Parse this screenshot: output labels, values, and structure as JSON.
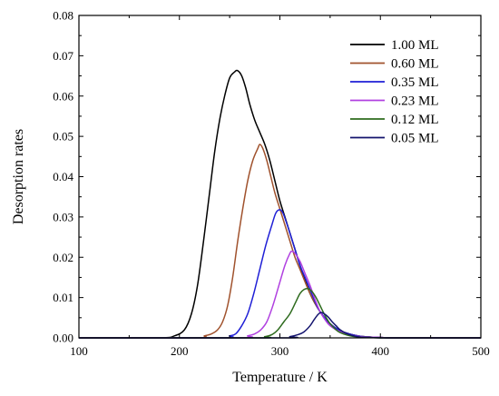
{
  "chart_data": {
    "type": "line",
    "title": "",
    "xlabel": "Temperature / K",
    "ylabel": "Desorption rates",
    "xlim": [
      100,
      500
    ],
    "ylim": [
      0,
      0.08
    ],
    "x_ticks": [
      100,
      200,
      300,
      400,
      500
    ],
    "y_ticks": [
      0.0,
      0.01,
      0.02,
      0.03,
      0.04,
      0.05,
      0.06,
      0.07,
      0.08
    ],
    "x_tick_labels": [
      "100",
      "200",
      "300",
      "400",
      "500"
    ],
    "y_tick_labels": [
      "0.00",
      "0.01",
      "0.02",
      "0.03",
      "0.04",
      "0.05",
      "0.06",
      "0.07",
      "0.08"
    ],
    "grid": false,
    "legend_position": "top-right",
    "series": [
      {
        "name": "1.00 ML",
        "color": "#000000",
        "x": [
          100,
          180,
          195,
          205,
          212,
          218,
          224,
          230,
          235,
          240,
          245,
          250,
          255,
          258,
          262,
          266,
          270,
          275,
          280,
          285,
          290,
          295,
          300,
          305,
          310,
          315,
          320,
          330,
          340,
          350,
          360,
          370,
          380,
          390,
          400,
          410,
          420,
          440,
          460,
          500
        ],
        "y": [
          0,
          0,
          0.0005,
          0.002,
          0.006,
          0.013,
          0.024,
          0.036,
          0.046,
          0.054,
          0.06,
          0.0645,
          0.066,
          0.0663,
          0.065,
          0.062,
          0.058,
          0.054,
          0.051,
          0.048,
          0.044,
          0.039,
          0.034,
          0.03,
          0.026,
          0.022,
          0.018,
          0.011,
          0.0065,
          0.0035,
          0.0018,
          0.0009,
          0.0004,
          0.0002,
          0.0001,
          0,
          0,
          0,
          0,
          0
        ]
      },
      {
        "name": "0.60 ML",
        "color": "#a0522d",
        "x": [
          100,
          215,
          225,
          232,
          238,
          243,
          248,
          253,
          258,
          263,
          268,
          273,
          278,
          280,
          283,
          287,
          291,
          295,
          300,
          305,
          310,
          315,
          320,
          330,
          340,
          350,
          360,
          370,
          380,
          390,
          400,
          420,
          500
        ],
        "y": [
          0,
          0,
          0.0005,
          0.001,
          0.002,
          0.004,
          0.008,
          0.015,
          0.024,
          0.032,
          0.039,
          0.044,
          0.047,
          0.048,
          0.047,
          0.044,
          0.04,
          0.036,
          0.032,
          0.028,
          0.024,
          0.02,
          0.017,
          0.011,
          0.0065,
          0.0035,
          0.0018,
          0.0009,
          0.0004,
          0.0002,
          0.0001,
          0,
          0
        ]
      },
      {
        "name": "0.35 ML",
        "color": "#1f1fd6",
        "x": [
          100,
          240,
          250,
          256,
          262,
          268,
          274,
          280,
          286,
          292,
          296,
          300,
          303,
          306,
          310,
          315,
          320,
          325,
          330,
          335,
          340,
          350,
          360,
          370,
          380,
          390,
          400,
          420,
          500
        ],
        "y": [
          0,
          0,
          0.0005,
          0.001,
          0.003,
          0.006,
          0.011,
          0.017,
          0.023,
          0.028,
          0.031,
          0.0318,
          0.031,
          0.029,
          0.026,
          0.022,
          0.018,
          0.015,
          0.012,
          0.009,
          0.0065,
          0.0035,
          0.0018,
          0.0009,
          0.0004,
          0.0002,
          0.0001,
          0,
          0
        ]
      },
      {
        "name": "0.23 ML",
        "color": "#b040e0",
        "x": [
          100,
          258,
          268,
          275,
          281,
          287,
          293,
          299,
          305,
          310,
          312,
          315,
          320,
          325,
          330,
          335,
          340,
          345,
          350,
          360,
          370,
          380,
          390,
          400,
          420,
          500
        ],
        "y": [
          0,
          0,
          0.0005,
          0.001,
          0.002,
          0.004,
          0.008,
          0.013,
          0.018,
          0.021,
          0.0215,
          0.021,
          0.019,
          0.016,
          0.013,
          0.0095,
          0.0065,
          0.0045,
          0.003,
          0.0015,
          0.0007,
          0.0003,
          0.0002,
          0.0001,
          0,
          0
        ]
      },
      {
        "name": "0.12 ML",
        "color": "#2e6b1e",
        "x": [
          100,
          275,
          285,
          292,
          298,
          304,
          310,
          316,
          320,
          324,
          328,
          332,
          336,
          340,
          345,
          350,
          355,
          360,
          370,
          380,
          390,
          400,
          420,
          500
        ],
        "y": [
          0,
          0,
          0.0003,
          0.0008,
          0.002,
          0.004,
          0.006,
          0.009,
          0.011,
          0.012,
          0.0122,
          0.0115,
          0.01,
          0.008,
          0.0055,
          0.0035,
          0.0022,
          0.0013,
          0.0005,
          0.0002,
          0.0001,
          0,
          0,
          0
        ]
      },
      {
        "name": "0.05 ML",
        "color": "#14146e",
        "x": [
          100,
          300,
          310,
          318,
          324,
          330,
          334,
          338,
          341,
          344,
          348,
          352,
          356,
          360,
          366,
          372,
          380,
          390,
          400,
          420,
          500
        ],
        "y": [
          0,
          0,
          0.0003,
          0.0008,
          0.0015,
          0.003,
          0.0045,
          0.0058,
          0.0063,
          0.006,
          0.0052,
          0.004,
          0.003,
          0.002,
          0.0011,
          0.0006,
          0.0002,
          0.0001,
          0,
          0,
          0
        ]
      }
    ]
  }
}
